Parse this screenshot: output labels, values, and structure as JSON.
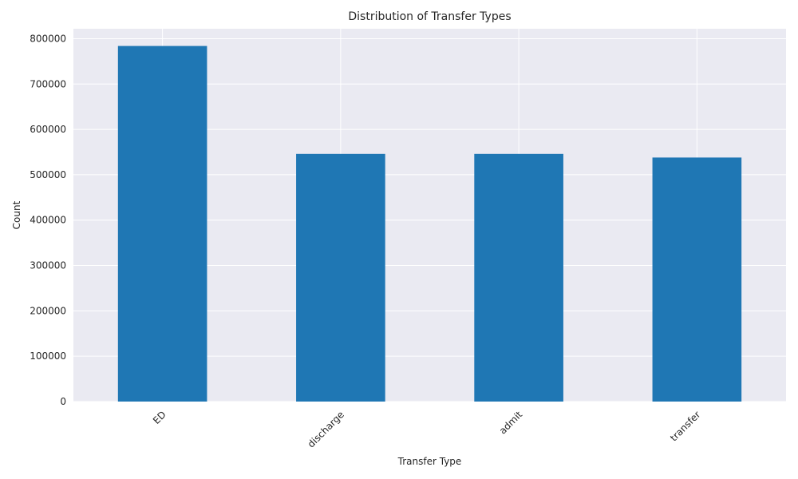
{
  "chart_data": {
    "type": "bar",
    "title": "Distribution of Transfer Types",
    "xlabel": "Transfer Type",
    "ylabel": "Count",
    "categories": [
      "ED",
      "discharge",
      "admit",
      "transfer"
    ],
    "values": [
      784000,
      546000,
      546000,
      538000
    ],
    "ylim": [
      0,
      822000
    ],
    "yticks": [
      0,
      100000,
      200000,
      300000,
      400000,
      500000,
      600000,
      700000,
      800000
    ],
    "ytick_labels": [
      "0",
      "100000",
      "200000",
      "300000",
      "400000",
      "500000",
      "600000",
      "700000",
      "800000"
    ],
    "grid": true,
    "legend": "none"
  },
  "colors": {
    "bar": "#1f77b4",
    "plot_background": "#eaeaf2",
    "grid": "#ffffff",
    "text": "#262626"
  }
}
